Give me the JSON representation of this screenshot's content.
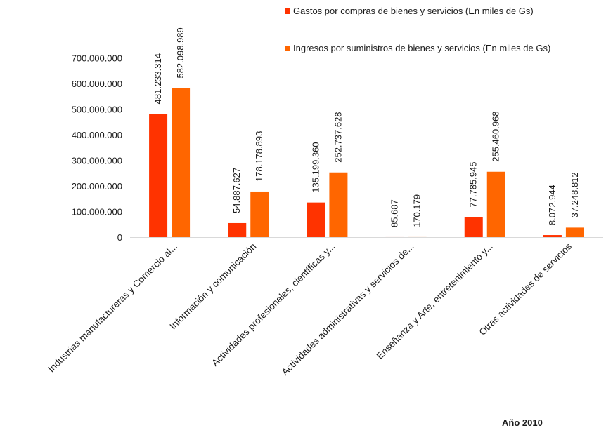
{
  "chart_data": {
    "type": "bar",
    "categories": [
      "Industrias manufactureras y  Comercio al...",
      "Información y comunicación",
      "Actividades profesionales, científicas y...",
      "Actividades administrativas y servicios de...",
      "Enseñanza y Arte, entretenimiento y...",
      "Otras actividades de servicios"
    ],
    "series": [
      {
        "name": "Gastos por compras de bienes y servicios (En miles de Gs)",
        "color": "#ff3300",
        "values": [
          481233314,
          54887627,
          135199360,
          85687,
          77785945,
          8072944
        ],
        "labels": [
          "481.233.314",
          "54.887.627",
          "135.199.360",
          "85.687",
          "77.785.945",
          "8.072.944"
        ]
      },
      {
        "name": "Ingresos por suministros de bienes y servicios (En miles de Gs)",
        "color": "#ff6600",
        "values": [
          582098989,
          178178893,
          252737628,
          170179,
          255460968,
          37248812
        ],
        "labels": [
          "582.098.989",
          "178.178.893",
          "252.737.628",
          "170.179",
          "255.460.968",
          "37.248.812"
        ]
      }
    ],
    "yticks": [
      0,
      100000000,
      200000000,
      300000000,
      400000000,
      500000000,
      600000000,
      700000000
    ],
    "ytick_labels": [
      "0",
      "100.000.000",
      "200.000.000",
      "300.000.000",
      "400.000.000",
      "500.000.000",
      "600.000.000",
      "700.000.000"
    ],
    "ylim": [
      0,
      700000000
    ],
    "legend_position": "top-right",
    "grid": false,
    "footnote": "Año 2010"
  }
}
